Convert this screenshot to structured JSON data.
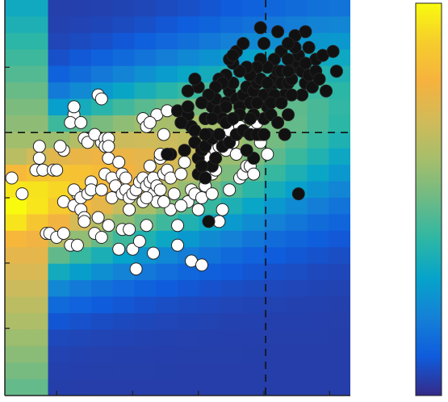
{
  "chart_data": {
    "type": "scatter",
    "title": "",
    "xlabel": "",
    "ylabel": "",
    "xlim": [
      0,
      100
    ],
    "ylim": [
      0,
      100
    ],
    "grid": false,
    "legend": "none",
    "colormap": "parula",
    "colorbar": "right",
    "reference_lines": {
      "x": 75.5,
      "y": 66.5
    },
    "x_ticks": [
      15,
      37,
      56,
      75,
      94
    ],
    "y_ticks": [
      17,
      33.5,
      50,
      66.5,
      83
    ],
    "background": {
      "kind": "density-heatmap",
      "columns": 16,
      "rows": 24,
      "ridge": {
        "start": [
          3,
          48
        ],
        "end": [
          90,
          73
        ]
      },
      "spread": 13
    },
    "marker_colors": {
      "white": "#ffffff",
      "black": "#111111",
      "edge": "#222222"
    },
    "series": [
      {
        "marker": "white",
        "points": [
          [
            2,
            55
          ],
          [
            5,
            51
          ],
          [
            9,
            57
          ],
          [
            11,
            57
          ],
          [
            14,
            57
          ],
          [
            10,
            63
          ],
          [
            10,
            60
          ],
          [
            17,
            62
          ],
          [
            15,
            57
          ],
          [
            16,
            63
          ],
          [
            20,
            71
          ],
          [
            19,
            69
          ],
          [
            27,
            76
          ],
          [
            23,
            65
          ],
          [
            24,
            64
          ],
          [
            28,
            64
          ],
          [
            26,
            66
          ],
          [
            29,
            65
          ],
          [
            29,
            63
          ],
          [
            30,
            65
          ],
          [
            17,
            49
          ],
          [
            20,
            48
          ],
          [
            21,
            51
          ],
          [
            20,
            52
          ],
          [
            22,
            50
          ],
          [
            22,
            47
          ],
          [
            24,
            51
          ],
          [
            23,
            45
          ],
          [
            25,
            54
          ],
          [
            25,
            52
          ],
          [
            27,
            45
          ],
          [
            28,
            52
          ],
          [
            29,
            56
          ],
          [
            30,
            60
          ],
          [
            31,
            55
          ],
          [
            31,
            50
          ],
          [
            32,
            53
          ],
          [
            33,
            59
          ],
          [
            34,
            56
          ],
          [
            34,
            51
          ],
          [
            35,
            55
          ],
          [
            35,
            52
          ],
          [
            36,
            50
          ],
          [
            37,
            51
          ],
          [
            36,
            47
          ],
          [
            38,
            52
          ],
          [
            39,
            54
          ],
          [
            40,
            55
          ],
          [
            40,
            49
          ],
          [
            41,
            53
          ],
          [
            42,
            54
          ],
          [
            43,
            55
          ],
          [
            42,
            58
          ],
          [
            43,
            51
          ],
          [
            44,
            53
          ],
          [
            45,
            52
          ],
          [
            44,
            49
          ],
          [
            46,
            56
          ],
          [
            45,
            60
          ],
          [
            47,
            57
          ],
          [
            48,
            55
          ],
          [
            49,
            51
          ],
          [
            48,
            47
          ],
          [
            50,
            43
          ],
          [
            51,
            56
          ],
          [
            52,
            59
          ],
          [
            53,
            49
          ],
          [
            54,
            52
          ],
          [
            55,
            51
          ],
          [
            56,
            47
          ],
          [
            57,
            50
          ],
          [
            57,
            56
          ],
          [
            58,
            53
          ],
          [
            58,
            59
          ],
          [
            59,
            60
          ],
          [
            60,
            51
          ],
          [
            60,
            56
          ],
          [
            61,
            57
          ],
          [
            61,
            62
          ],
          [
            62,
            63
          ],
          [
            63,
            65
          ],
          [
            64,
            62
          ],
          [
            65,
            67
          ],
          [
            66,
            64
          ],
          [
            67,
            66
          ],
          [
            68,
            68
          ],
          [
            67,
            61
          ],
          [
            68,
            55
          ],
          [
            69,
            56
          ],
          [
            70,
            58
          ],
          [
            71,
            58
          ],
          [
            72,
            56
          ],
          [
            72,
            67
          ],
          [
            73,
            69
          ],
          [
            74,
            64
          ],
          [
            76,
            61
          ],
          [
            74,
            66
          ],
          [
            12,
            41
          ],
          [
            13,
            41
          ],
          [
            15,
            40
          ],
          [
            17,
            41
          ],
          [
            19,
            38
          ],
          [
            21,
            38
          ],
          [
            23,
            44
          ],
          [
            26,
            41
          ],
          [
            28,
            40
          ],
          [
            30,
            43
          ],
          [
            33,
            37
          ],
          [
            34,
            42
          ],
          [
            37,
            37
          ],
          [
            39,
            39
          ],
          [
            41,
            43
          ],
          [
            36,
            42
          ],
          [
            38,
            32
          ],
          [
            54,
            34
          ],
          [
            28,
            75
          ],
          [
            40,
            70
          ],
          [
            41,
            68
          ],
          [
            30,
            63
          ],
          [
            45,
            61
          ],
          [
            46,
            66
          ],
          [
            44,
            71
          ],
          [
            42,
            69
          ],
          [
            47,
            72
          ],
          [
            20,
            73
          ],
          [
            22,
            69
          ],
          [
            43,
            36
          ],
          [
            50,
            38
          ],
          [
            41,
            50
          ],
          [
            46,
            49
          ],
          [
            57,
            33
          ],
          [
            62,
            44
          ],
          [
            65,
            52
          ],
          [
            63,
            47
          ],
          [
            51,
            48
          ]
        ]
      },
      {
        "marker": "black",
        "points": [
          [
            50,
            72
          ],
          [
            52,
            69
          ],
          [
            54,
            68
          ],
          [
            53,
            71
          ],
          [
            55,
            67
          ],
          [
            55,
            64
          ],
          [
            56,
            60
          ],
          [
            57,
            62
          ],
          [
            58,
            63
          ],
          [
            59,
            66
          ],
          [
            60,
            65
          ],
          [
            58,
            70
          ],
          [
            60,
            73
          ],
          [
            61,
            75
          ],
          [
            62,
            72
          ],
          [
            63,
            70
          ],
          [
            64,
            74
          ],
          [
            65,
            77
          ],
          [
            66,
            79
          ],
          [
            67,
            75
          ],
          [
            68,
            73
          ],
          [
            69,
            76
          ],
          [
            70,
            78
          ],
          [
            71,
            74
          ],
          [
            72,
            77
          ],
          [
            73,
            79
          ],
          [
            74,
            80
          ],
          [
            75,
            76
          ],
          [
            76,
            73
          ],
          [
            77,
            78
          ],
          [
            78,
            80
          ],
          [
            79,
            82
          ],
          [
            80,
            79
          ],
          [
            81,
            76
          ],
          [
            82,
            79
          ],
          [
            83,
            80
          ],
          [
            84,
            83
          ],
          [
            85,
            84
          ],
          [
            86,
            82
          ],
          [
            87,
            79
          ],
          [
            88,
            81
          ],
          [
            90,
            82
          ],
          [
            85,
            86
          ],
          [
            84,
            88
          ],
          [
            80,
            87
          ],
          [
            78,
            85
          ],
          [
            76,
            83
          ],
          [
            74,
            85
          ],
          [
            73,
            83
          ],
          [
            71,
            81
          ],
          [
            70,
            83
          ],
          [
            68,
            82
          ],
          [
            66,
            84
          ],
          [
            64,
            81
          ],
          [
            62,
            80
          ],
          [
            65,
            85
          ],
          [
            67,
            87
          ],
          [
            63,
            79
          ],
          [
            61,
            78
          ],
          [
            60,
            70
          ],
          [
            59,
            76
          ],
          [
            57,
            74
          ],
          [
            56,
            78
          ],
          [
            55,
            80
          ],
          [
            53,
            73
          ],
          [
            51,
            69
          ],
          [
            56,
            56
          ],
          [
            58,
            55
          ],
          [
            60,
            58
          ],
          [
            61,
            60
          ],
          [
            63,
            63
          ],
          [
            65,
            64
          ],
          [
            67,
            66
          ],
          [
            69,
            67
          ],
          [
            71,
            66
          ],
          [
            73,
            66
          ],
          [
            75,
            70
          ],
          [
            77,
            71
          ],
          [
            79,
            69
          ],
          [
            81,
            66
          ],
          [
            82,
            71
          ],
          [
            78,
            76
          ],
          [
            76,
            79
          ],
          [
            80,
            82
          ],
          [
            82,
            85
          ],
          [
            84,
            91
          ],
          [
            82,
            89
          ],
          [
            87,
            92
          ],
          [
            90,
            85
          ],
          [
            88,
            88
          ],
          [
            92,
            86
          ],
          [
            95,
            87
          ],
          [
            96,
            82
          ],
          [
            93,
            77
          ],
          [
            79,
            92
          ],
          [
            74,
            93
          ],
          [
            66,
            86
          ],
          [
            69,
            89
          ],
          [
            75,
            89
          ],
          [
            85,
            51
          ],
          [
            59,
            44
          ],
          [
            72,
            60
          ],
          [
            70,
            62
          ],
          [
            64,
            69
          ],
          [
            68,
            71
          ],
          [
            48,
            61
          ],
          [
            47,
            61
          ],
          [
            53,
            77
          ],
          [
            52,
            62
          ],
          [
            57,
            58
          ],
          [
            72,
            71
          ],
          [
            77,
            74
          ],
          [
            80,
            74
          ],
          [
            86,
            76
          ],
          [
            89,
            78
          ],
          [
            91,
            80
          ],
          [
            83,
            76
          ],
          [
            75,
            66
          ],
          [
            73,
            74
          ],
          [
            71,
            70
          ],
          [
            62,
            66
          ],
          [
            58,
            66
          ],
          [
            64,
            73
          ],
          [
            66,
            70
          ],
          [
            82,
            82
          ],
          [
            87,
            84
          ]
        ]
      }
    ]
  }
}
